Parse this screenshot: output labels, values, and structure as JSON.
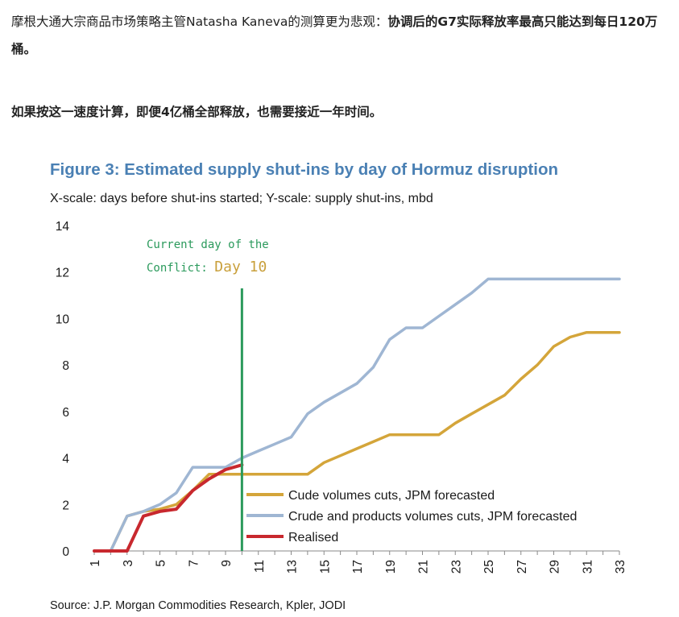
{
  "article": {
    "para1_normal": "摩根大通大宗商品市场策略主管Natasha Kaneva的测算更为悲观：",
    "para1_bold": "协调后的G7实际释放率最高只能达到每日120万桶。",
    "para2_bold": "如果按这一速度计算，即便4亿桶全部释放，也需要接近一年时间。"
  },
  "colors": {
    "title": "#4a80b4",
    "gold": "#d4a53a",
    "blue": "#9fb6d3",
    "red": "#c8282e",
    "green": "#2b9a5c",
    "annotation_gold": "#c9a03c"
  },
  "chart_data": {
    "type": "line",
    "title": "Figure 3: Estimated supply shut-ins by day of Hormuz disruption",
    "subtitle": "X-scale: days before shut-ins started; Y-scale: supply shut-ins, mbd",
    "xlabel": "",
    "ylabel": "",
    "xlim": [
      1,
      33
    ],
    "ylim": [
      0,
      14
    ],
    "yticks": [
      0,
      2,
      4,
      6,
      8,
      10,
      12,
      14
    ],
    "xticks": [
      1,
      3,
      5,
      7,
      9,
      11,
      13,
      15,
      17,
      19,
      21,
      23,
      25,
      27,
      29,
      31,
      33
    ],
    "grid": false,
    "legend_position": "bottom-right",
    "annotation": {
      "line1": "Current day of the",
      "line2_prefix": "Conflict: ",
      "line2_value": "Day 10",
      "x": 10
    },
    "series": [
      {
        "name": "Cude volumes cuts, JPM forecasted",
        "color": "#d4a53a",
        "x": [
          1,
          2,
          3,
          4,
          5,
          6,
          7,
          8,
          9,
          10,
          11,
          12,
          13,
          14,
          15,
          16,
          17,
          18,
          19,
          20,
          21,
          22,
          23,
          24,
          25,
          26,
          27,
          28,
          29,
          30,
          31,
          32,
          33
        ],
        "values": [
          0,
          0,
          1.5,
          1.7,
          1.8,
          2.0,
          2.6,
          3.3,
          3.3,
          3.3,
          3.3,
          3.3,
          3.3,
          3.3,
          3.8,
          4.1,
          4.4,
          4.7,
          5.0,
          5.0,
          5.0,
          5.0,
          5.5,
          5.9,
          6.3,
          6.7,
          7.4,
          8.0,
          8.8,
          9.2,
          9.4,
          9.4,
          9.4
        ]
      },
      {
        "name": "Crude and products volumes cuts, JPM forecasted",
        "color": "#9fb6d3",
        "x": [
          1,
          2,
          3,
          4,
          5,
          6,
          7,
          8,
          9,
          10,
          11,
          12,
          13,
          14,
          15,
          16,
          17,
          18,
          19,
          20,
          21,
          22,
          23,
          24,
          25,
          26,
          27,
          28,
          29,
          30,
          31,
          32,
          33
        ],
        "values": [
          0,
          0,
          1.5,
          1.7,
          2.0,
          2.5,
          3.6,
          3.6,
          3.6,
          4.0,
          4.3,
          4.6,
          4.9,
          5.9,
          6.4,
          6.8,
          7.2,
          7.9,
          9.1,
          9.6,
          9.6,
          10.1,
          10.6,
          11.1,
          11.7,
          11.7,
          11.7,
          11.7,
          11.7,
          11.7,
          11.7,
          11.7,
          11.7
        ]
      },
      {
        "name": "Realised",
        "color": "#c8282e",
        "x": [
          1,
          2,
          3,
          4,
          5,
          6,
          7,
          8,
          9,
          10
        ],
        "values": [
          0,
          0,
          0,
          1.5,
          1.7,
          1.8,
          2.6,
          3.1,
          3.5,
          3.7
        ]
      }
    ],
    "source": "Source: J.P. Morgan Commodities Research, Kpler, JODI"
  }
}
